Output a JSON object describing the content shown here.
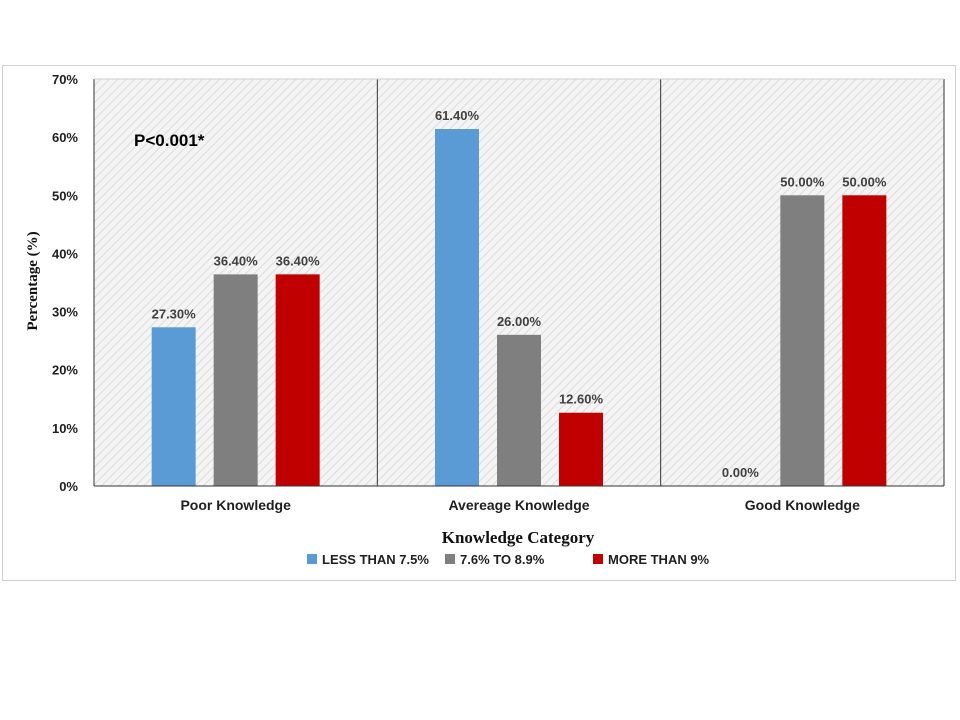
{
  "chart_data": {
    "type": "bar",
    "categories": [
      "Poor Knowledge",
      "Avereage Knowledge",
      "Good Knowledge"
    ],
    "series": [
      {
        "name": "LESS THAN 7.5%",
        "values": [
          27.3,
          61.4,
          0.0
        ],
        "labels": [
          "27.30%",
          "61.40%",
          "0.00%"
        ],
        "color": "#5b9bd5"
      },
      {
        "name": "7.6% TO 8.9%",
        "values": [
          36.4,
          26.0,
          50.0
        ],
        "labels": [
          "36.40%",
          "26.00%",
          "50.00%"
        ],
        "color": "#7f7f7f"
      },
      {
        "name": "MORE THAN 9%",
        "values": [
          36.4,
          12.6,
          50.0
        ],
        "labels": [
          "36.40%",
          "12.60%",
          "50.00%"
        ],
        "color": "#c00000"
      }
    ],
    "ylim": [
      0,
      70
    ],
    "yticks": [
      0,
      10,
      20,
      30,
      40,
      50,
      60,
      70
    ],
    "ytick_labels": [
      "0%",
      "10%",
      "20%",
      "30%",
      "40%",
      "50%",
      "60%",
      "70%"
    ],
    "xlabel": "Knowledge Category",
    "ylabel": "Percentage (%)",
    "annotation": "P<0.001*",
    "legend_position": "bottom",
    "background_pattern": "diagonal hatch"
  }
}
